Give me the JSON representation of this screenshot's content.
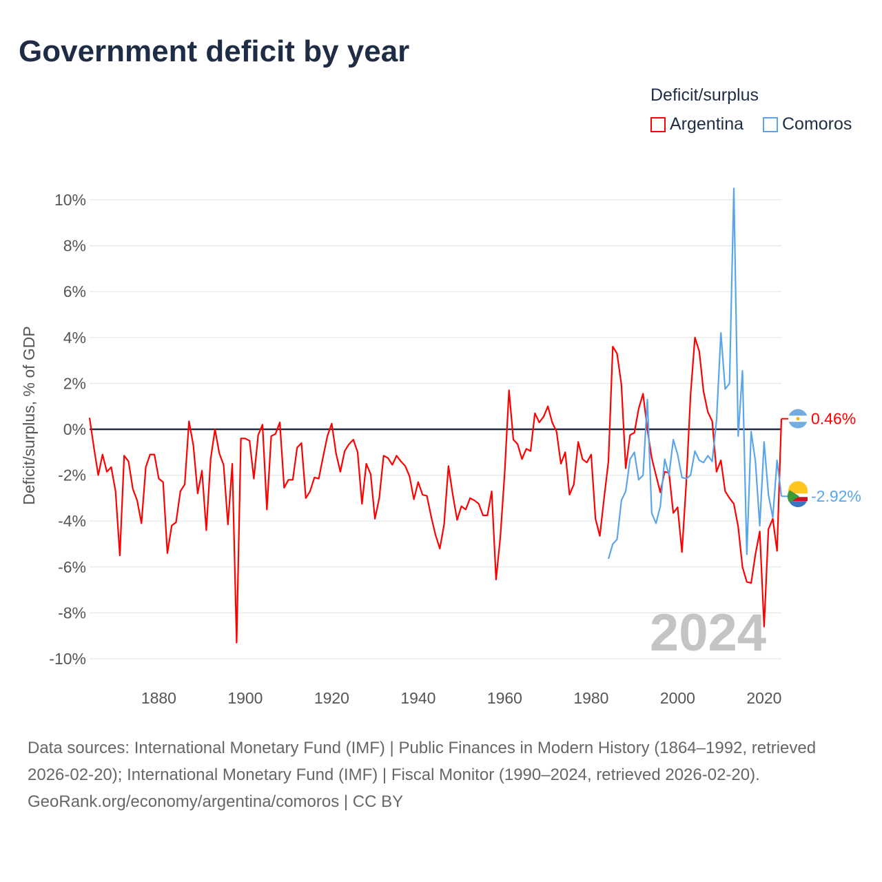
{
  "title": "Government deficit by year",
  "legend": {
    "title": "Deficit/surplus",
    "items": [
      {
        "name": "Argentina",
        "color": "#ff0000"
      },
      {
        "name": "Comoros",
        "color": "#5aa5ea"
      }
    ]
  },
  "footer": {
    "sources": "Data sources: International Monetary Fund (IMF) | Public Finances in Modern History (1864–1992, retrieved 2026-02-20); International Monetary Fund (IMF) | Fiscal Monitor (1990–2024, retrieved 2026-02-20).",
    "credit": "GeoRank.org/economy/argentina/comoros | CC BY"
  },
  "chart_data": {
    "type": "line",
    "title": "Government deficit by year",
    "xlabel": "",
    "ylabel": "Deficit/surplus, % of GDP",
    "xlim": [
      1864,
      2024
    ],
    "ylim": [
      -10,
      10
    ],
    "xticks": [
      1880,
      1900,
      1920,
      1940,
      1960,
      1980,
      2000,
      2020
    ],
    "yticks": [
      -10,
      -8,
      -6,
      -4,
      -2,
      0,
      2,
      4,
      6,
      8,
      10
    ],
    "ytick_labels": [
      "-10%",
      "-8%",
      "-6%",
      "-4%",
      "-2%",
      "0%",
      "2%",
      "4%",
      "6%",
      "8%",
      "10%"
    ],
    "year_watermark": "2024",
    "series": [
      {
        "name": "Argentina",
        "color": "#ff0000",
        "start_year": 1864,
        "end_label": "0.46%",
        "values": [
          0.5,
          -0.8,
          -2.0,
          -1.1,
          -1.85,
          -1.65,
          -2.7,
          -5.5,
          -1.15,
          -1.4,
          -2.6,
          -3.1,
          -4.1,
          -1.65,
          -1.1,
          -1.1,
          -2.15,
          -2.3,
          -5.4,
          -4.2,
          -4.05,
          -2.7,
          -2.4,
          0.35,
          -0.7,
          -2.8,
          -1.8,
          -4.4,
          -1.3,
          0.0,
          -1.05,
          -1.55,
          -4.15,
          -1.5,
          -9.3,
          -0.4,
          -0.4,
          -0.5,
          -2.15,
          -0.25,
          0.2,
          -3.5,
          -0.3,
          -0.2,
          0.3,
          -2.55,
          -2.2,
          -2.2,
          -0.8,
          -0.6,
          -3.0,
          -2.7,
          -2.1,
          -2.15,
          -1.2,
          -0.3,
          0.25,
          -1.05,
          -1.85,
          -0.95,
          -0.65,
          -0.45,
          -1.0,
          -3.25,
          -1.5,
          -1.95,
          -3.9,
          -3.0,
          -1.15,
          -1.25,
          -1.55,
          -1.15,
          -1.4,
          -1.6,
          -2.05,
          -3.05,
          -2.3,
          -2.85,
          -2.9,
          -3.8,
          -4.6,
          -5.2,
          -4.15,
          -1.6,
          -2.85,
          -3.95,
          -3.35,
          -3.5,
          -3.0,
          -3.1,
          -3.25,
          -3.75,
          -3.75,
          -2.7,
          -6.55,
          -4.7,
          -1.9,
          1.7,
          -0.45,
          -0.65,
          -1.3,
          -0.85,
          -0.95,
          0.7,
          0.3,
          0.55,
          1.0,
          0.3,
          -0.1,
          -1.5,
          -1.0,
          -2.85,
          -2.4,
          -0.55,
          -1.3,
          -1.45,
          -1.1,
          -3.9,
          -4.65,
          -3.0,
          -1.4,
          3.6,
          3.3,
          1.95,
          -1.7,
          -0.25,
          -0.15,
          0.9,
          1.55,
          0.0,
          -1.25,
          -2.0,
          -2.75,
          -1.85,
          -1.9,
          -3.65,
          -3.4,
          -5.35,
          -2.3,
          1.5,
          4.0,
          3.4,
          1.65,
          0.75,
          0.35,
          -1.85,
          -1.35,
          -2.7,
          -3.0,
          -3.25,
          -4.25,
          -6.0,
          -6.65,
          -6.7,
          -5.45,
          -4.45,
          -8.6,
          -4.35,
          -3.9,
          -5.3,
          0.46
        ]
      },
      {
        "name": "Comoros",
        "color": "#5aa5ea",
        "start_year": 1984,
        "end_label": "-2.92%",
        "values": [
          -5.65,
          -5.0,
          -4.8,
          -3.1,
          -2.7,
          -1.3,
          -1.0,
          -2.2,
          -2.0,
          1.3,
          -3.65,
          -4.1,
          -3.35,
          -1.3,
          -2.0,
          -0.45,
          -1.1,
          -2.1,
          -2.15,
          -2.0,
          -0.95,
          -1.35,
          -1.45,
          -1.15,
          -1.4,
          0.4,
          4.2,
          1.75,
          2.0,
          10.5,
          -0.3,
          2.55,
          -5.45,
          -0.1,
          -1.4,
          -4.2,
          -0.55,
          -2.85,
          -3.85,
          -1.35,
          -2.92
        ]
      }
    ]
  }
}
